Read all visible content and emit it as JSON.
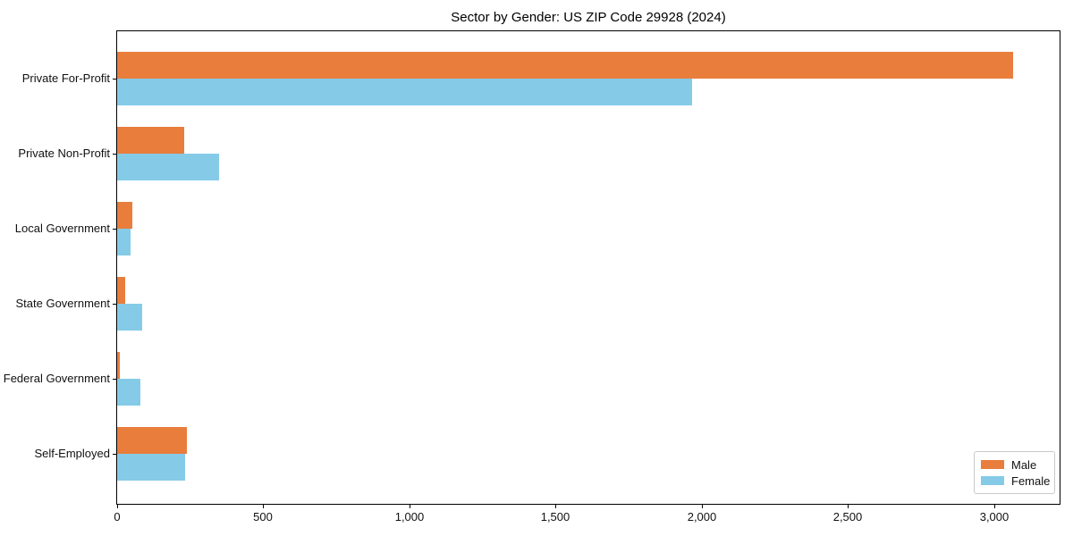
{
  "chart_data": {
    "type": "bar",
    "orientation": "horizontal",
    "title": "Sector by Gender: US ZIP Code 29928 (2024)",
    "categories": [
      "Private For-Profit",
      "Private Non-Profit",
      "Local Government",
      "State Government",
      "Federal Government",
      "Self-Employed"
    ],
    "series": [
      {
        "name": "Male",
        "color": "#e87d3c",
        "values": [
          3065,
          230,
          53,
          26,
          8,
          240
        ]
      },
      {
        "name": "Female",
        "color": "#85cbe8",
        "values": [
          1968,
          350,
          46,
          85,
          80,
          233
        ]
      }
    ],
    "xlabel": "",
    "ylabel": "",
    "xlim": [
      0,
      3224
    ],
    "xticks": {
      "values": [
        0,
        500,
        1000,
        1500,
        2000,
        2500,
        3000
      ],
      "labels": [
        "0",
        "500",
        "1,000",
        "1,500",
        "2,000",
        "2,500",
        "3,000"
      ]
    },
    "grid": false,
    "legend": {
      "position": "lower right"
    }
  },
  "colors": {
    "spine": "#000000",
    "background": "#ffffff",
    "legend_border": "#c9c9c9",
    "text": "#111111"
  }
}
